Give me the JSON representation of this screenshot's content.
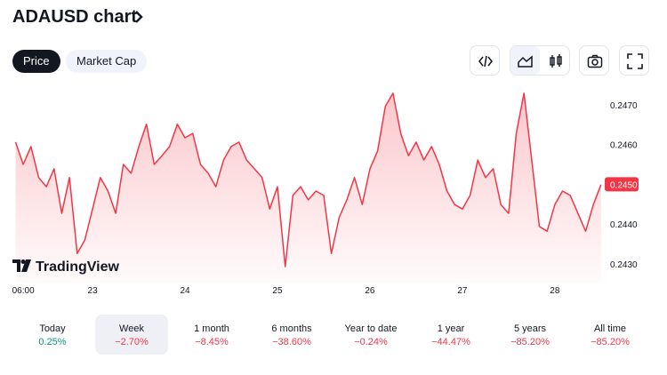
{
  "header": {
    "title": "ADAUSD chart"
  },
  "tabs": [
    {
      "label": "Price",
      "selected": true
    },
    {
      "label": "Market Cap",
      "selected": false
    }
  ],
  "watermark": "TradingView",
  "chart_data": {
    "type": "area",
    "color": "#f23645",
    "grid": false,
    "x": [
      4,
      6,
      8,
      10,
      12,
      14,
      16,
      18,
      20,
      22,
      24,
      26,
      28,
      30,
      32,
      34,
      36,
      38,
      40,
      42,
      44,
      46,
      48,
      50,
      52,
      54,
      56,
      58,
      60,
      62,
      64,
      66,
      68,
      70,
      72,
      74,
      76,
      78,
      80,
      82,
      84,
      86,
      88,
      90,
      92,
      94,
      96,
      98,
      100,
      102,
      104,
      106,
      108,
      110,
      112,
      114,
      116,
      118,
      120,
      122,
      124,
      126,
      128,
      130,
      132,
      134,
      136,
      138,
      140,
      142,
      144,
      146,
      148,
      150,
      152,
      154,
      156
    ],
    "values": [
      0.24606,
      0.2455,
      0.24595,
      0.24517,
      0.24494,
      0.24539,
      0.24427,
      0.24517,
      0.24326,
      0.2436,
      0.24438,
      0.24517,
      0.24483,
      0.24427,
      0.2455,
      0.24528,
      0.24595,
      0.24651,
      0.2455,
      0.24572,
      0.24595,
      0.24651,
      0.24617,
      0.24628,
      0.2455,
      0.24528,
      0.24494,
      0.24561,
      0.24595,
      0.24606,
      0.24561,
      0.24539,
      0.24517,
      0.24438,
      0.24494,
      0.24293,
      0.24472,
      0.24494,
      0.24461,
      0.24483,
      0.24472,
      0.24326,
      0.24416,
      0.24461,
      0.24517,
      0.24449,
      0.24539,
      0.24584,
      0.24696,
      0.24729,
      0.24628,
      0.24572,
      0.24606,
      0.24561,
      0.24595,
      0.2455,
      0.24483,
      0.24449,
      0.24438,
      0.24472,
      0.24561,
      0.24517,
      0.24539,
      0.24449,
      0.24427,
      0.24628,
      0.24729,
      0.24561,
      0.24394,
      0.24382,
      0.24449,
      0.24483,
      0.24472,
      0.24427,
      0.24382,
      0.24449,
      0.24499
    ],
    "xlim": [
      3.2,
      156.5
    ],
    "xticks": [
      {
        "value": 6,
        "label": "06:00"
      },
      {
        "value": 24,
        "label": "23"
      },
      {
        "value": 48,
        "label": "24"
      },
      {
        "value": 72,
        "label": "25"
      },
      {
        "value": 96,
        "label": "26"
      },
      {
        "value": 120,
        "label": "27"
      },
      {
        "value": 144,
        "label": "28"
      }
    ],
    "ylim": [
      0.24253,
      0.24751
    ],
    "yticks": [
      {
        "value": 0.247,
        "label": "0.2470"
      },
      {
        "value": 0.246,
        "label": "0.2460"
      },
      {
        "value": 0.245,
        "label": "0.2450"
      },
      {
        "value": 0.244,
        "label": "0.2440"
      },
      {
        "value": 0.243,
        "label": "0.2430"
      }
    ],
    "price_label": {
      "value": 0.245,
      "label": "0.2450"
    }
  },
  "periods": [
    {
      "label": "Today",
      "change": "0.25%",
      "color": "#089981"
    },
    {
      "label": "Week",
      "change": "−2.70%",
      "color": "#f23645",
      "selected": true
    },
    {
      "label": "1 month",
      "change": "−8.45%",
      "color": "#f23645"
    },
    {
      "label": "6 months",
      "change": "−38.60%",
      "color": "#f23645"
    },
    {
      "label": "Year to date",
      "change": "−0.24%",
      "color": "#f23645"
    },
    {
      "label": "1 year",
      "change": "−44.47%",
      "color": "#f23645"
    },
    {
      "label": "5 years",
      "change": "−85.20%",
      "color": "#f23645"
    },
    {
      "label": "All time",
      "change": "−85.20%",
      "color": "#f23645"
    }
  ]
}
